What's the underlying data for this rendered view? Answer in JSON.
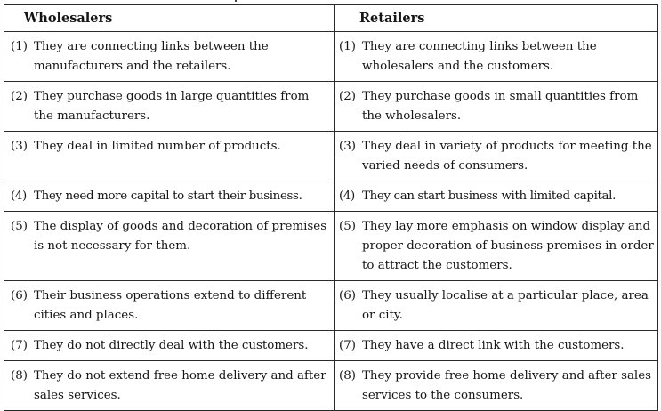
{
  "headers": {
    "left": "Wholesalers",
    "right": "Retailers"
  },
  "rows": [
    {
      "left_num": "(1)",
      "left": "They are connecting links between the manufacturers and the retailers.",
      "right_num": "(1)",
      "right": "They are connecting links between the wholesalers and the customers."
    },
    {
      "left_num": "(2)",
      "left": "They purchase goods in large quantities from the manufacturers.",
      "right_num": "(2)",
      "right": "They purchase goods in small quantities from the wholesalers."
    },
    {
      "left_num": "(3)",
      "left": "They deal in limited number of products.",
      "right_num": "(3)",
      "right": "They deal in variety of products for meeting the varied needs of consumers."
    },
    {
      "left_num": "(4)",
      "left": "They need more capital to start their business.",
      "right_num": "(4)",
      "right": "They can start business with limited capital."
    },
    {
      "left_num": "(5)",
      "left": "The display of goods and decoration of premises is not necessary for them.",
      "right_num": "(5)",
      "right": "They lay more emphasis on window display and proper decoration of business premises in order to attract the customers."
    },
    {
      "left_num": "(6)",
      "left": "Their business operations extend to different cities and places.",
      "right_num": "(6)",
      "right": "They usually localise at a particular place, area or city."
    },
    {
      "left_num": "(7)",
      "left": "They do not directly deal with the customers.",
      "right_num": "(7)",
      "right": "They have a direct link with the customers."
    },
    {
      "left_num": "(8)",
      "left": "They do not extend free home delivery and after sales services.",
      "right_num": "(8)",
      "right": "They provide free home delivery and after sales services to the consumers."
    }
  ]
}
